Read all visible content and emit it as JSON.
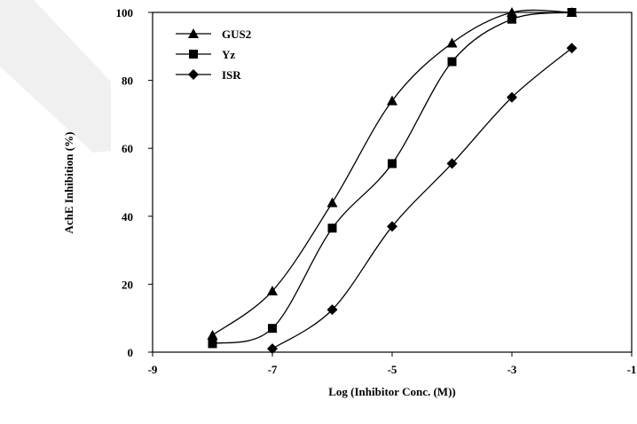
{
  "chart_data": {
    "type": "line",
    "title": "",
    "xlabel": "Log (Inhibitor Conc. (M))",
    "ylabel": "AchE Inhibition (%)",
    "xlim": [
      -9,
      -1
    ],
    "ylim": [
      0,
      100
    ],
    "xticks": [
      -9,
      -7,
      -5,
      -3,
      -1
    ],
    "yticks": [
      0,
      20,
      40,
      60,
      80,
      100
    ],
    "grid": false,
    "legend_position": "top-left",
    "series": [
      {
        "name": "GUS2",
        "marker": "triangle",
        "color": "#000000",
        "x": [
          -8,
          -7,
          -6,
          -5,
          -4,
          -3,
          -2
        ],
        "y": [
          5,
          18,
          44,
          74,
          91,
          100,
          100
        ]
      },
      {
        "name": "Yz",
        "marker": "square",
        "color": "#000000",
        "x": [
          -8,
          -7,
          -6,
          -5,
          -4,
          -3,
          -2
        ],
        "y": [
          2.5,
          7,
          36.5,
          55.5,
          85.5,
          98,
          100
        ]
      },
      {
        "name": "ISR",
        "marker": "diamond",
        "color": "#000000",
        "x": [
          -7,
          -6,
          -5,
          -4,
          -3,
          -2
        ],
        "y": [
          1,
          12.5,
          37,
          55.5,
          75,
          89.5
        ]
      }
    ]
  }
}
